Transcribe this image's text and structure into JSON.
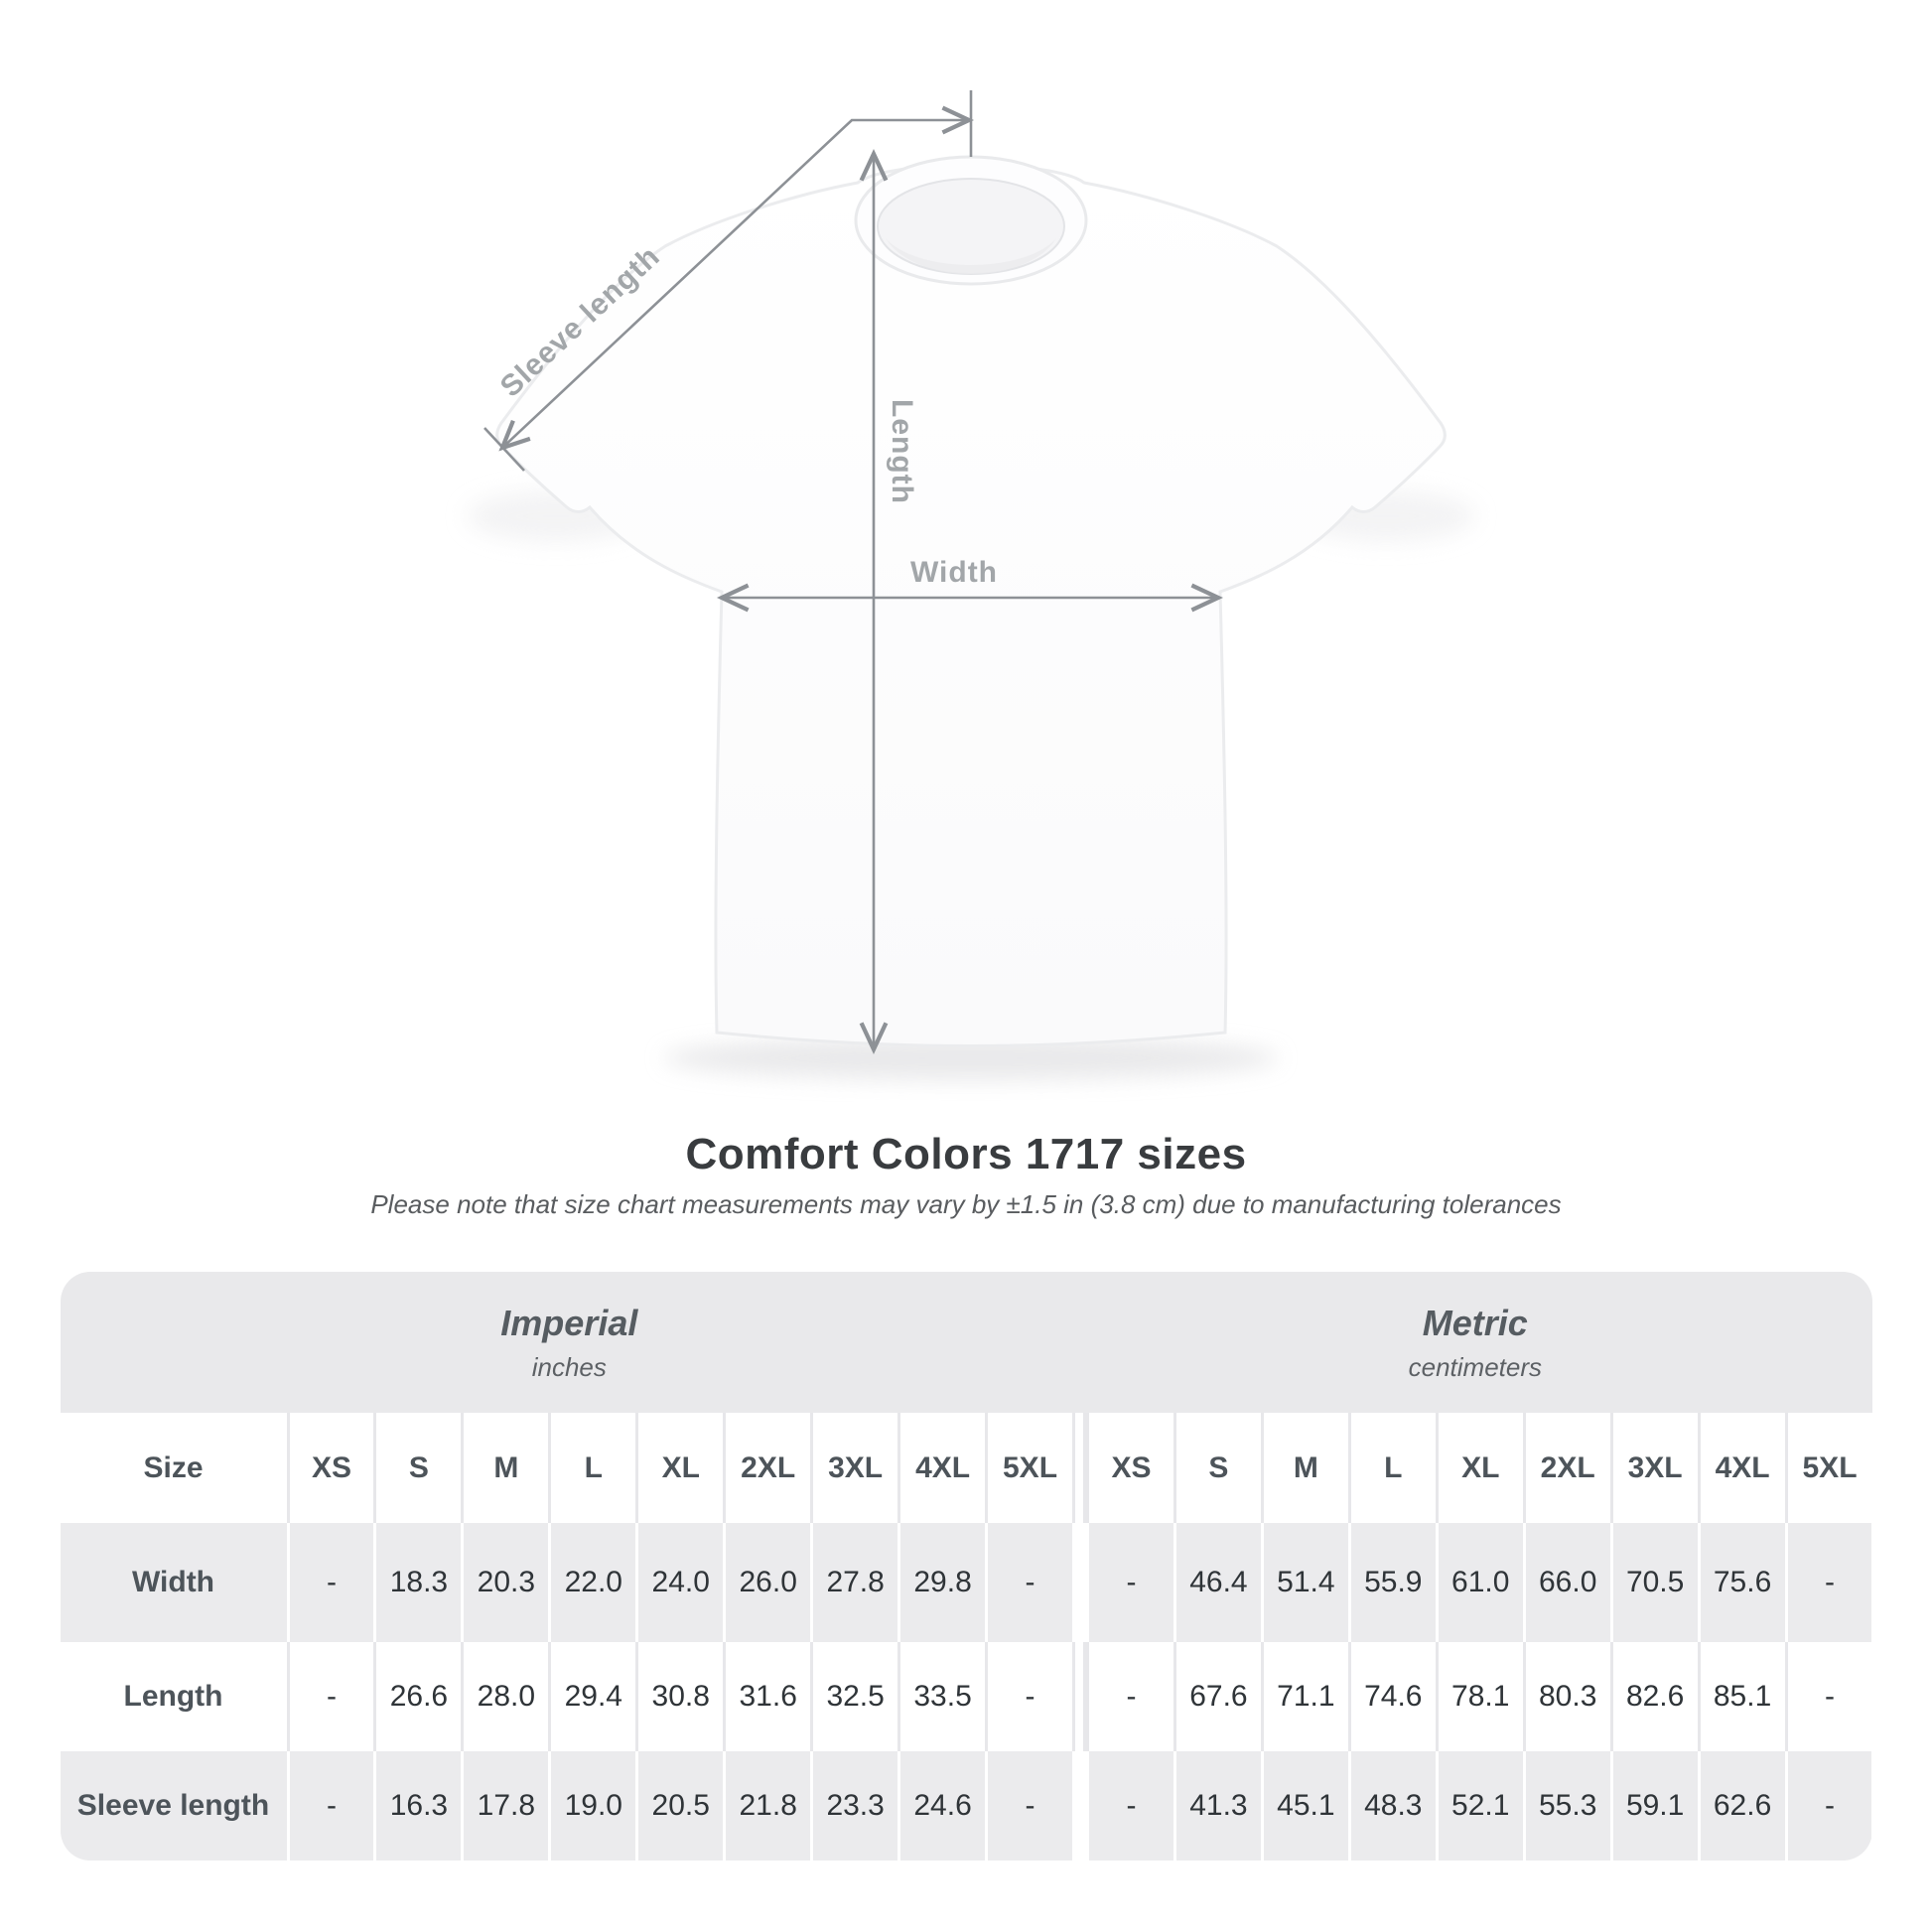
{
  "title": "Comfort Colors 1717 sizes",
  "subtitle": "Please note that size chart measurements may vary by ±1.5 in (3.8 cm) due to manufacturing tolerances",
  "figure": {
    "labels": {
      "sleeve": "Sleeve length",
      "length": "Length",
      "width": "Width"
    }
  },
  "table": {
    "groups": [
      {
        "label": "Imperial",
        "sublabel": "inches"
      },
      {
        "label": "Metric",
        "sublabel": "centimeters"
      }
    ],
    "size_header": "Size",
    "sizes": [
      "XS",
      "S",
      "M",
      "L",
      "XL",
      "2XL",
      "3XL",
      "4XL",
      "5XL"
    ],
    "rows": [
      {
        "label": "Width",
        "imperial": [
          "-",
          "18.3",
          "20.3",
          "22.0",
          "24.0",
          "26.0",
          "27.8",
          "29.8",
          "-"
        ],
        "metric": [
          "-",
          "46.4",
          "51.4",
          "55.9",
          "61.0",
          "66.0",
          "70.5",
          "75.6",
          "-"
        ]
      },
      {
        "label": "Length",
        "imperial": [
          "-",
          "26.6",
          "28.0",
          "29.4",
          "30.8",
          "31.6",
          "32.5",
          "33.5",
          "-"
        ],
        "metric": [
          "-",
          "67.6",
          "71.1",
          "74.6",
          "78.1",
          "80.3",
          "82.6",
          "85.1",
          "-"
        ]
      },
      {
        "label": "Sleeve length",
        "imperial": [
          "-",
          "16.3",
          "17.8",
          "19.0",
          "20.5",
          "21.8",
          "23.3",
          "24.6",
          "-"
        ],
        "metric": [
          "-",
          "41.3",
          "45.1",
          "48.3",
          "52.1",
          "55.3",
          "59.1",
          "62.6",
          "-"
        ]
      }
    ]
  },
  "colors": {
    "band_gray": "#e9e9eb",
    "row_gray": "#ebebed",
    "annotation_gray": "#a2a6a9",
    "line_gray": "#8d9196",
    "title_dark": "#393c3f"
  },
  "chart_data": {
    "type": "table",
    "title": "Comfort Colors 1717 sizes",
    "note": "Please note that size chart measurements may vary by ±1.5 in (3.8 cm) due to manufacturing tolerances",
    "column_groups": [
      "Imperial (inches)",
      "Metric (centimeters)"
    ],
    "sizes": [
      "XS",
      "S",
      "M",
      "L",
      "XL",
      "2XL",
      "3XL",
      "4XL",
      "5XL"
    ],
    "measurements": [
      "Width",
      "Length",
      "Sleeve length"
    ],
    "imperial_inches": {
      "Width": [
        null,
        18.3,
        20.3,
        22.0,
        24.0,
        26.0,
        27.8,
        29.8,
        null
      ],
      "Length": [
        null,
        26.6,
        28.0,
        29.4,
        30.8,
        31.6,
        32.5,
        33.5,
        null
      ],
      "Sleeve length": [
        null,
        16.3,
        17.8,
        19.0,
        20.5,
        21.8,
        23.3,
        24.6,
        null
      ]
    },
    "metric_centimeters": {
      "Width": [
        null,
        46.4,
        51.4,
        55.9,
        61.0,
        66.0,
        70.5,
        75.6,
        null
      ],
      "Length": [
        null,
        67.6,
        71.1,
        74.6,
        78.1,
        80.3,
        82.6,
        85.1,
        null
      ],
      "Sleeve length": [
        null,
        41.3,
        45.1,
        48.3,
        52.1,
        55.3,
        59.1,
        62.6,
        null
      ]
    }
  }
}
